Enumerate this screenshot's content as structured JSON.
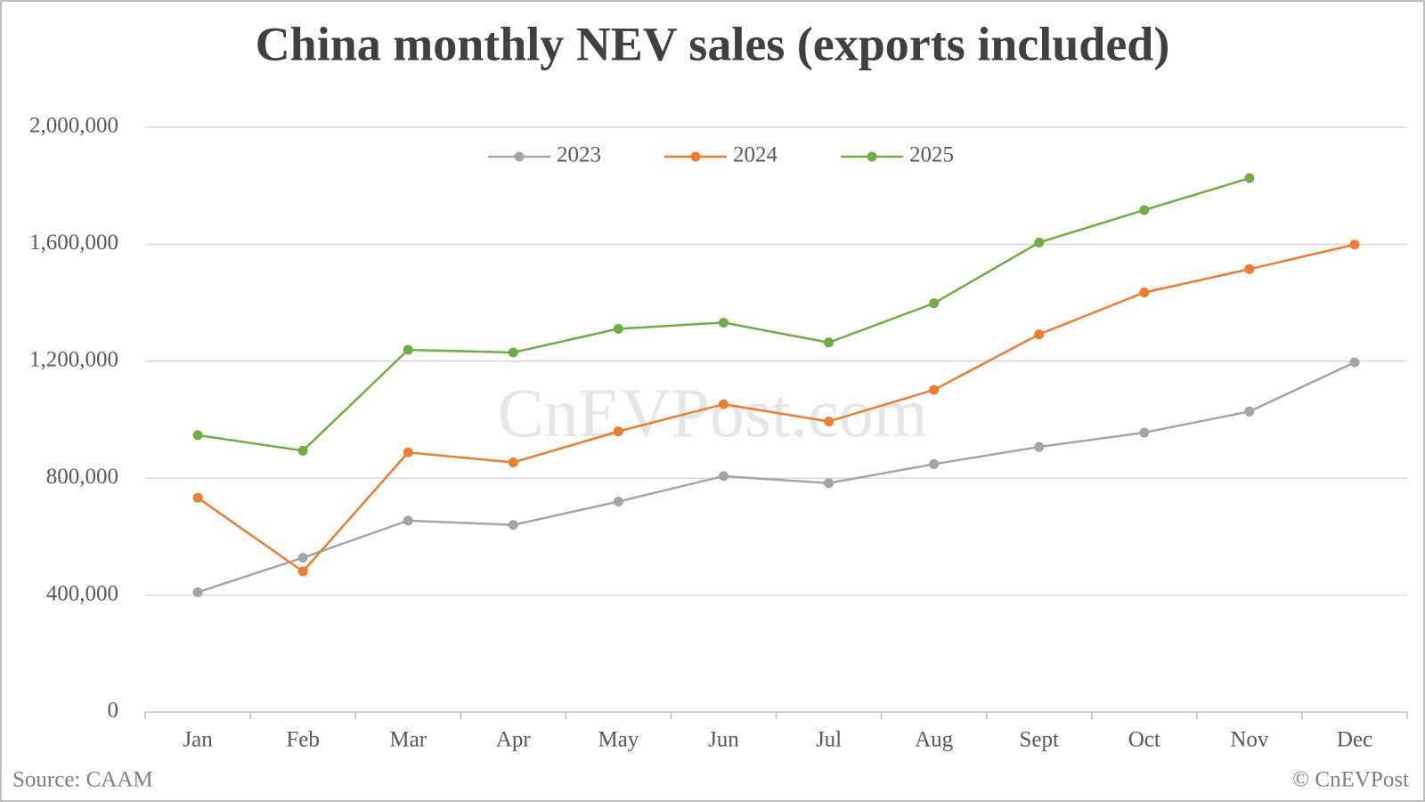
{
  "chart_data": {
    "type": "line",
    "title": "China monthly NEV sales (exports included)",
    "categories": [
      "Jan",
      "Feb",
      "Mar",
      "Apr",
      "May",
      "Jun",
      "Jul",
      "Aug",
      "Sept",
      "Oct",
      "Nov",
      "Dec"
    ],
    "series": [
      {
        "name": "2023",
        "color": "#a5a5a5",
        "values": [
          410000,
          528000,
          655000,
          640000,
          720000,
          807000,
          783000,
          848000,
          907000,
          956000,
          1028000,
          1196000
        ]
      },
      {
        "name": "2024",
        "color": "#ed7d31",
        "values": [
          733000,
          481000,
          888000,
          854000,
          960000,
          1053000,
          994000,
          1102000,
          1292000,
          1435000,
          1515000,
          1599000
        ]
      },
      {
        "name": "2025",
        "color": "#70ad47",
        "values": [
          947000,
          894000,
          1239000,
          1230000,
          1311000,
          1332000,
          1264000,
          1398000,
          1606000,
          1717000,
          1826000,
          null
        ]
      }
    ],
    "ylim": [
      0,
      2000000
    ],
    "yticks": [
      0,
      {
        "value": 400000,
        "label": "400,000"
      },
      {
        "value": 800000,
        "label": "800,000"
      },
      {
        "value": 1200000,
        "label": "1,200,000"
      },
      {
        "value": 1600000,
        "label": "1,600,000"
      },
      {
        "value": 2000000,
        "label": "2,000,000"
      }
    ],
    "grid": true,
    "legend": "top",
    "watermark": "CnEVPost.com",
    "source": "Source: CAAM",
    "copyright": "© CnEVPost"
  }
}
